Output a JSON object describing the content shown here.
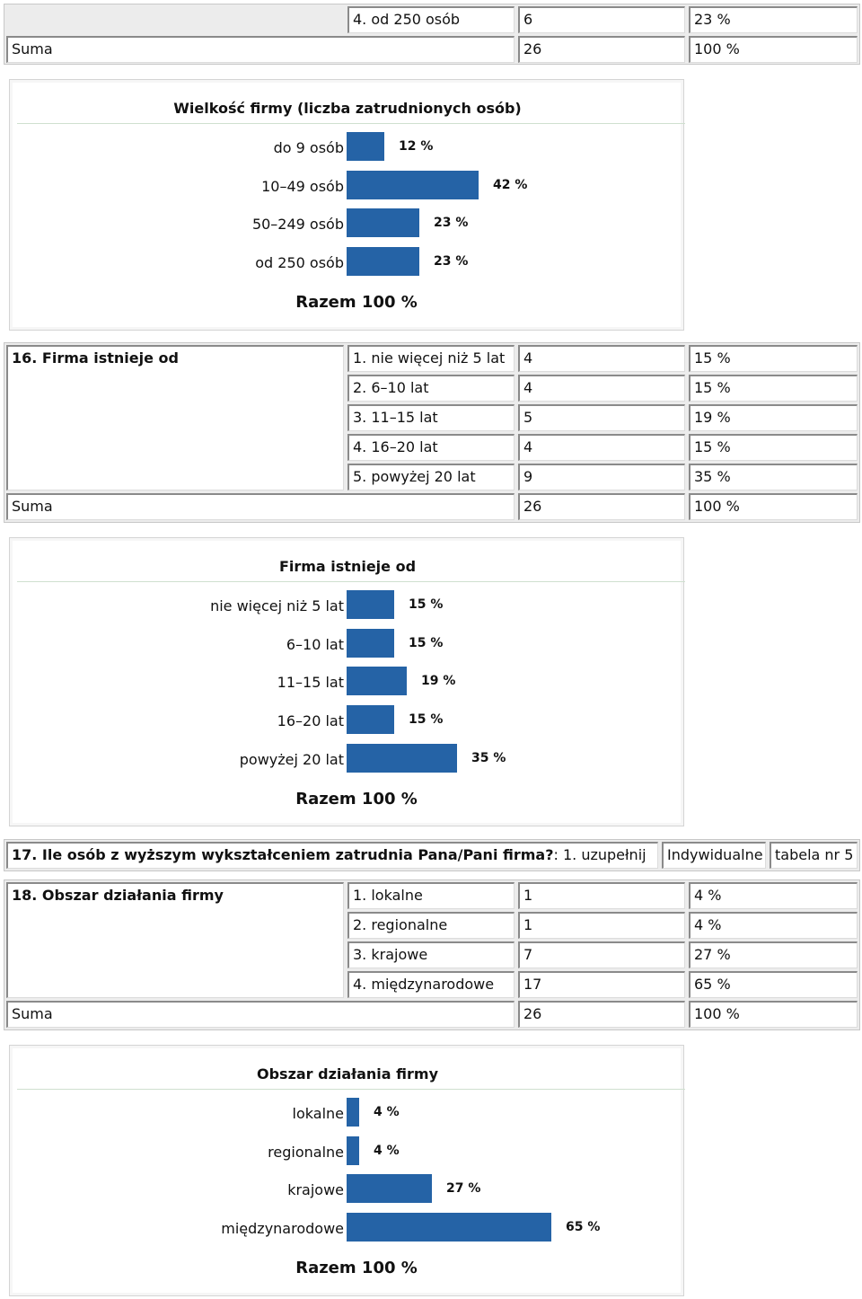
{
  "t15": {
    "row4": {
      "label": "4. od 250 osób",
      "n": "6",
      "p": "23 %"
    },
    "sum": {
      "label": "Suma",
      "n": "26",
      "p": "100 %"
    }
  },
  "chart15": {
    "title": "Wielkość firmy (liczba zatrudnionych osób)",
    "total": "Razem 100 %",
    "categories": [
      "do 9 osób",
      "10–49 osób",
      "50–249 osób",
      "od 250 osób"
    ],
    "values": [
      12,
      42,
      23,
      23
    ],
    "labels": [
      "12 %",
      "42 %",
      "23 %",
      "23 %"
    ]
  },
  "t16": {
    "question": "16. Firma istnieje od",
    "rows": [
      {
        "label": "1. nie więcej niż 5 lat",
        "n": "4",
        "p": "15 %"
      },
      {
        "label": "2. 6–10 lat",
        "n": "4",
        "p": "15 %"
      },
      {
        "label": "3. 11–15 lat",
        "n": "5",
        "p": "19 %"
      },
      {
        "label": "4. 16–20 lat",
        "n": "4",
        "p": "15 %"
      },
      {
        "label": "5. powyżej 20 lat",
        "n": "9",
        "p": "35 %"
      }
    ],
    "sum": {
      "label": "Suma",
      "n": "26",
      "p": "100 %"
    }
  },
  "chart16": {
    "title": "Firma istnieje od",
    "total": "Razem 100 %",
    "categories": [
      "nie więcej niż 5 lat",
      "6–10 lat",
      "11–15 lat",
      "16–20 lat",
      "powyżej 20 lat"
    ],
    "values": [
      15,
      15,
      19,
      15,
      35
    ],
    "labels": [
      "15 %",
      "15 %",
      "19 %",
      "15 %",
      "35 %"
    ]
  },
  "t17": {
    "question": "17. Ile osób z wyższym wykształceniem zatrudnia Pana/Pani firma?",
    "answer": ": 1. uzupełnij",
    "type": "Indywidualne",
    "ref": "tabela nr 5"
  },
  "t18": {
    "question": "18. Obszar działania firmy",
    "rows": [
      {
        "label": "1. lokalne",
        "n": "1",
        "p": "4 %"
      },
      {
        "label": "2. regionalne",
        "n": "1",
        "p": "4 %"
      },
      {
        "label": "3. krajowe",
        "n": "7",
        "p": "27 %"
      },
      {
        "label": "4. międzynarodowe",
        "n": "17",
        "p": "65 %"
      }
    ],
    "sum": {
      "label": "Suma",
      "n": "26",
      "p": "100 %"
    }
  },
  "chart18": {
    "title": "Obszar działania firmy",
    "total": "Razem 100 %",
    "categories": [
      "lokalne",
      "regionalne",
      "krajowe",
      "międzynarodowe"
    ],
    "values": [
      4,
      4,
      27,
      65
    ],
    "labels": [
      "4 %",
      "4 %",
      "27 %",
      "65 %"
    ]
  },
  "chart_data": [
    {
      "type": "bar",
      "title": "Wielkość firmy (liczba zatrudnionych osób)",
      "categories": [
        "do 9 osób",
        "10–49 osób",
        "50–249 osób",
        "od 250 osób"
      ],
      "values": [
        12,
        42,
        23,
        23
      ]
    },
    {
      "type": "bar",
      "title": "Firma istnieje od",
      "categories": [
        "nie więcej niż 5 lat",
        "6–10 lat",
        "11–15 lat",
        "16–20 lat",
        "powyżej 20 lat"
      ],
      "values": [
        15,
        15,
        19,
        15,
        35
      ]
    },
    {
      "type": "bar",
      "title": "Obszar działania firmy",
      "categories": [
        "lokalne",
        "regionalne",
        "krajowe",
        "międzynarodowe"
      ],
      "values": [
        4,
        4,
        27,
        65
      ]
    }
  ],
  "colors": {
    "bar": "#2563a6"
  }
}
